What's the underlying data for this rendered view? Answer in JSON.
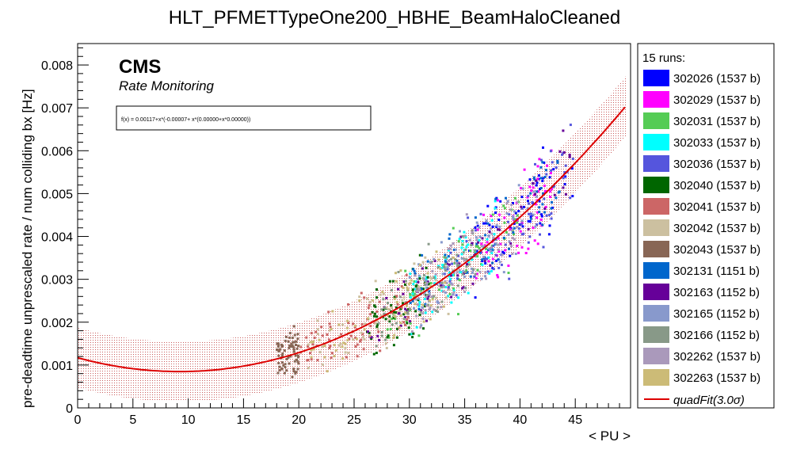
{
  "chart_data": {
    "type": "scatter",
    "title": "HLT_PFMETTypeOne200_HBHE_BeamHaloCleaned",
    "xlabel": "< PU >",
    "ylabel": "pre-deadtime unprescaled rate / num colliding bx [Hz]",
    "xlim": [
      0,
      50
    ],
    "ylim": [
      0,
      0.0085
    ],
    "x_ticks": [
      "0",
      "5",
      "10",
      "15",
      "20",
      "25",
      "30",
      "35",
      "40",
      "45"
    ],
    "y_ticks": [
      "0",
      "0.001",
      "0.002",
      "0.003",
      "0.004",
      "0.005",
      "0.006",
      "0.007",
      "0.008"
    ],
    "x_tick_values": [
      0,
      5,
      10,
      15,
      20,
      25,
      30,
      35,
      40,
      45
    ],
    "y_tick_values": [
      0,
      0.001,
      0.002,
      0.003,
      0.004,
      0.005,
      0.006,
      0.007,
      0.008
    ],
    "cms_label": "CMS",
    "cms_sublabel": "Rate Monitoring",
    "fit_formula": "f(x) = 0.00117+x*(-0.00007+ x*(0.00000+x*0.00000))",
    "fit": {
      "name": "quadFit(3.0σ)",
      "a": 0.00117,
      "b": -7e-05,
      "c": 3.8e-06,
      "band": 0.0007,
      "x_range": [
        0,
        49.6
      ],
      "color": "#dd0000"
    },
    "legend_header": "15 runs:",
    "legend_position": "right",
    "series": [
      {
        "name": "302026 (1537 b)",
        "color": "#0000ff",
        "x_range": [
          35,
          45
        ]
      },
      {
        "name": "302029 (1537 b)",
        "color": "#ff00ff",
        "x_range": [
          36,
          43
        ]
      },
      {
        "name": "302031 (1537 b)",
        "color": "#55cc55",
        "x_range": [
          28,
          40
        ]
      },
      {
        "name": "302033 (1537 b)",
        "color": "#00ffff",
        "x_range": [
          30,
          38
        ]
      },
      {
        "name": "302036 (1537 b)",
        "color": "#5555dd",
        "x_range": [
          32,
          45
        ]
      },
      {
        "name": "302040 (1537 b)",
        "color": "#006600",
        "x_range": [
          26,
          32
        ]
      },
      {
        "name": "302041 (1537 b)",
        "color": "#cc6666",
        "x_range": [
          20,
          30
        ]
      },
      {
        "name": "302042 (1537 b)",
        "color": "#ccc0a0",
        "x_range": [
          20,
          35
        ]
      },
      {
        "name": "302043 (1537 b)",
        "color": "#886655",
        "x_range": [
          18,
          20
        ]
      },
      {
        "name": "302131 (1151 b)",
        "color": "#0066cc",
        "x_range": [
          30,
          44
        ]
      },
      {
        "name": "302163 (1152 b)",
        "color": "#660099",
        "x_range": [
          26,
          45
        ]
      },
      {
        "name": "302165 (1152 b)",
        "color": "#8899cc",
        "x_range": [
          30,
          42
        ]
      },
      {
        "name": "302166 (1152 b)",
        "color": "#889988",
        "x_range": [
          27,
          36
        ]
      },
      {
        "name": "302262 (1537 b)",
        "color": "#aa99bb",
        "x_range": [
          30,
          40
        ]
      },
      {
        "name": "302263 (1537 b)",
        "color": "#ccbb77",
        "x_range": [
          21,
          34
        ]
      }
    ],
    "grid": false
  }
}
